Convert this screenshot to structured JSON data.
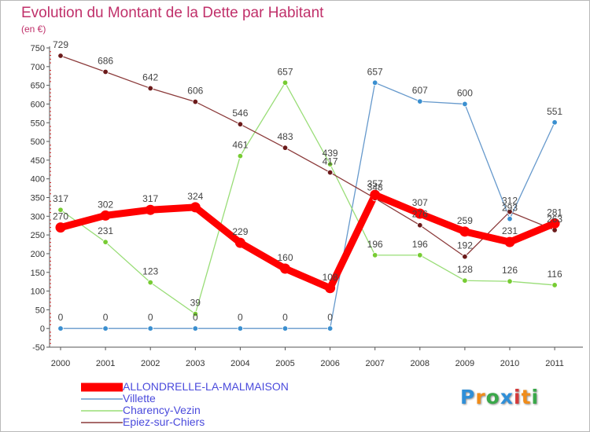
{
  "header": {
    "title": "Evolution du Montant de la Dette par Habitant",
    "subtitle": "(en €)"
  },
  "branding": {
    "logo_text": "Proxiti",
    "logo_colors": [
      "#2f8fd8",
      "#f08c1a",
      "#3aa84a",
      "#2f8fd8",
      "#d43a3a",
      "#f08c1a",
      "#3aa84a"
    ]
  },
  "chart_data": {
    "type": "line",
    "title": "Evolution du Montant de la Dette par Habitant",
    "subtitle": "(en €)",
    "xlabel": "",
    "ylabel": "",
    "categories": [
      "2000",
      "2001",
      "2002",
      "2003",
      "2004",
      "2005",
      "2006",
      "2007",
      "2008",
      "2009",
      "2010",
      "2011"
    ],
    "ylim": [
      -50,
      750
    ],
    "yticks": [
      -50,
      0,
      50,
      100,
      150,
      200,
      250,
      300,
      350,
      400,
      450,
      500,
      550,
      600,
      650,
      700,
      750
    ],
    "grid": false,
    "legend_position": "bottom-left",
    "series": [
      {
        "name": "ALLONDRELLE-LA-MALMAISON",
        "color": "#ff0000",
        "emphasis": true,
        "values": [
          270,
          302,
          317,
          324,
          229,
          160,
          108,
          357,
          307,
          259,
          231,
          281
        ],
        "labels": [
          "270",
          "302",
          "317",
          "324",
          "229",
          "160",
          "108",
          "357",
          "307",
          "259",
          "231",
          "281"
        ]
      },
      {
        "name": "Villette",
        "color": "#6699cc",
        "marker": "#3a8fd0",
        "values": [
          0,
          0,
          0,
          0,
          0,
          0,
          0,
          657,
          607,
          600,
          293,
          551
        ],
        "labels": [
          "0",
          "0",
          "0",
          "0",
          "0",
          "0",
          "0",
          "657",
          "607",
          "600",
          "293",
          "551"
        ]
      },
      {
        "name": "Charency-Vezin",
        "color": "#99dd77",
        "marker": "#77cc33",
        "values": [
          317,
          231,
          123,
          39,
          461,
          657,
          439,
          196,
          196,
          128,
          126,
          116
        ],
        "labels": [
          "317",
          "231",
          "123",
          "39",
          "461",
          "657",
          "439",
          "196",
          "196",
          "128",
          "126",
          "116"
        ]
      },
      {
        "name": "Epiez-sur-Chiers",
        "color": "#8b3a3a",
        "marker": "#6b1a1a",
        "values": [
          729,
          686,
          642,
          606,
          546,
          483,
          417,
          348,
          276,
          192,
          312,
          263
        ],
        "labels": [
          "729",
          "686",
          "642",
          "606",
          "546",
          "483",
          "417",
          "348",
          "276",
          "192",
          "312",
          "263"
        ]
      }
    ]
  }
}
